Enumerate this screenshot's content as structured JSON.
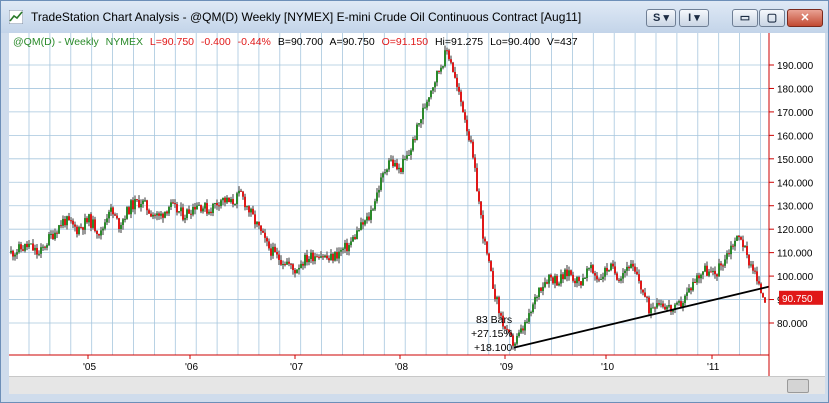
{
  "window": {
    "title": "TradeStation Chart Analysis - @QM(D) Weekly [NYMEX] E-mini Crude Oil Continuous Contract [Aug11]",
    "buttons": {
      "s_label": "S",
      "i_label": "I",
      "dropdown_glyph": "▾",
      "minimize_glyph": "▭",
      "maximize_glyph": "▢",
      "close_glyph": "✕"
    }
  },
  "status": {
    "symbol": "@QM(D) - Weekly",
    "exchange": "NYMEX",
    "last": "L=90.750",
    "change": "-0.400",
    "pct": "-0.44%",
    "bid": "B=90.700",
    "ask": "A=90.750",
    "open": "O=91.150",
    "high": "Hi=91.275",
    "low": "Lo=90.400",
    "volume": "V=437"
  },
  "colors": {
    "up": "#2a8a2a",
    "down": "#e01818",
    "wick": "#808080",
    "grid": "#a6c6de",
    "axis": "#cc0000",
    "last_tag": "#e01818"
  },
  "annotation": {
    "bars": "83 Bars",
    "pct": "+27.15%",
    "points": "+18.100"
  },
  "chart_data": {
    "type": "candlestick",
    "title": "",
    "xlabel": "",
    "ylabel": "",
    "ylim": [
      68,
      200
    ],
    "yticks": [
      80,
      90,
      100,
      110,
      120,
      130,
      140,
      150,
      160,
      170,
      180,
      190
    ],
    "ytick_labels": [
      "80.000",
      "90.000",
      "100.000",
      "110.000",
      "120.000",
      "130.000",
      "140.000",
      "150.000",
      "160.000",
      "170.000",
      "180.000",
      "190.000"
    ],
    "x_labels": [
      "'05",
      "'06",
      "'07",
      "'08",
      "'09",
      "'10",
      "'11"
    ],
    "last_price_label": "90.750",
    "last_price": 90.75,
    "trendline": {
      "from": [
        "'09 low",
        69.5
      ],
      "to": [
        "mid '11",
        95.5
      ]
    },
    "grid": true,
    "weekly_closes_approx": [
      {
        "period": "late '04",
        "close": 110
      },
      {
        "period": "mid '05",
        "close": 127
      },
      {
        "period": "early '06",
        "close": 126
      },
      {
        "period": "mid '06",
        "close": 134
      },
      {
        "period": "early '07",
        "close": 108
      },
      {
        "period": "mid '07",
        "close": 112
      },
      {
        "period": "late '07",
        "close": 145
      },
      {
        "period": "mid '08",
        "close": 196
      },
      {
        "period": "late '08",
        "close": 90
      },
      {
        "period": "early '09",
        "close": 72
      },
      {
        "period": "mid '09",
        "close": 100
      },
      {
        "period": "early '10",
        "close": 102
      },
      {
        "period": "mid '10",
        "close": 88
      },
      {
        "period": "early '11",
        "close": 107
      },
      {
        "period": "spring '11",
        "close": 118
      },
      {
        "period": "last",
        "close": 90.75
      }
    ]
  }
}
